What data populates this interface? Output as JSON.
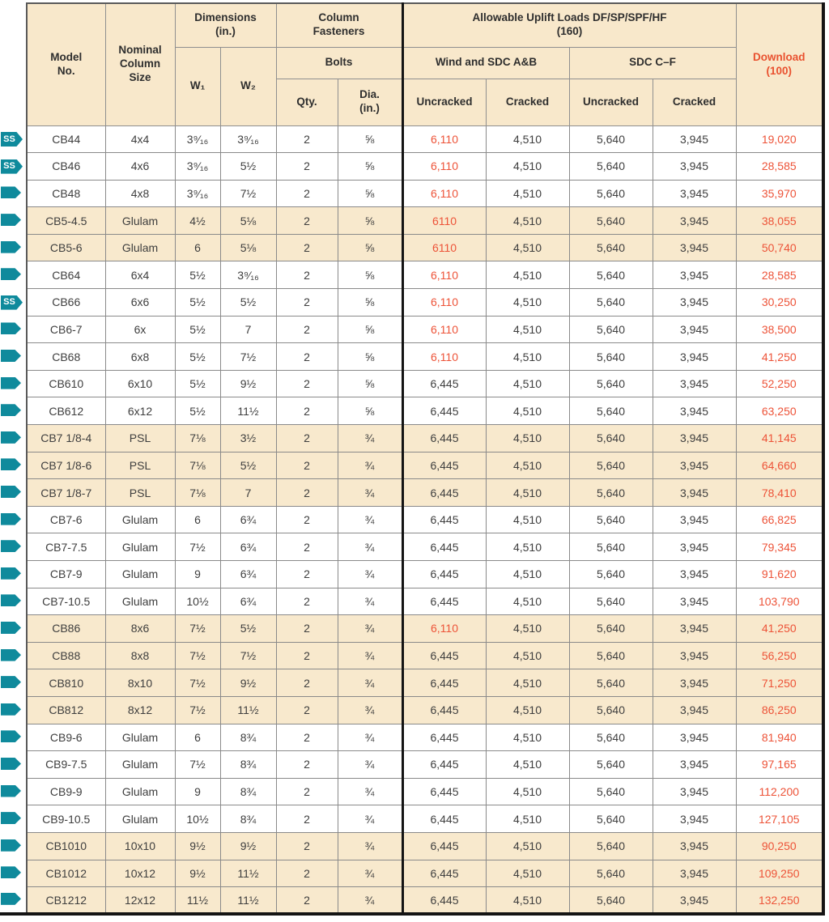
{
  "colors": {
    "accent_orange": "#ed5338",
    "badge_teal": "#0f8a9c",
    "row_tan": "#f8e9cd",
    "header_tan": "#f8e8cb"
  },
  "icons": {
    "ss_badge_label": "SS"
  },
  "table": {
    "header": {
      "model": "Model\nNo.",
      "nominal": "Nominal\nColumn\nSize",
      "dimensions": "Dimensions\n(in.)",
      "w1": "W₁",
      "w2": "W₂",
      "fasteners": "Column\nFasteners",
      "bolts": "Bolts",
      "qty": "Qty.",
      "dia": "Dia.\n(in.)",
      "uplift": "Allowable Uplift Loads DF/SP/SPF/HF\n(160)",
      "wind": "Wind and SDC A&B",
      "sdc": "SDC C–F",
      "uncracked1": "Uncracked",
      "cracked1": "Cracked",
      "uncracked2": "Uncracked",
      "cracked2": "Cracked",
      "download": "Download\n(100)"
    },
    "rows": [
      {
        "badge": "ss",
        "shaded": false,
        "model": "CB44",
        "nominal": "4x4",
        "w1": "3⁹⁄₁₆",
        "w2": "3⁹⁄₁₆",
        "qty": "2",
        "dia": "⅝",
        "wind_u": "6,110",
        "wind_u_hl": true,
        "wind_c": "4,510",
        "sdc_u": "5,640",
        "sdc_c": "3,945",
        "download": "19,020"
      },
      {
        "badge": "ss",
        "shaded": false,
        "model": "CB46",
        "nominal": "4x6",
        "w1": "3⁹⁄₁₆",
        "w2": "5½",
        "qty": "2",
        "dia": "⅝",
        "wind_u": "6,110",
        "wind_u_hl": true,
        "wind_c": "4,510",
        "sdc_u": "5,640",
        "sdc_c": "3,945",
        "download": "28,585"
      },
      {
        "badge": "arrow",
        "shaded": false,
        "model": "CB48",
        "nominal": "4x8",
        "w1": "3⁹⁄₁₆",
        "w2": "7½",
        "qty": "2",
        "dia": "⅝",
        "wind_u": "6,110",
        "wind_u_hl": true,
        "wind_c": "4,510",
        "sdc_u": "5,640",
        "sdc_c": "3,945",
        "download": "35,970"
      },
      {
        "badge": "arrow",
        "shaded": true,
        "model": "CB5-4.5",
        "nominal": "Glulam",
        "w1": "4½",
        "w2": "5⅛",
        "qty": "2",
        "dia": "⅝",
        "wind_u": "6110",
        "wind_u_hl": true,
        "wind_c": "4,510",
        "sdc_u": "5,640",
        "sdc_c": "3,945",
        "download": "38,055"
      },
      {
        "badge": "arrow",
        "shaded": true,
        "model": "CB5-6",
        "nominal": "Glulam",
        "w1": "6",
        "w2": "5⅛",
        "qty": "2",
        "dia": "⅝",
        "wind_u": "6110",
        "wind_u_hl": true,
        "wind_c": "4,510",
        "sdc_u": "5,640",
        "sdc_c": "3,945",
        "download": "50,740"
      },
      {
        "badge": "arrow",
        "shaded": false,
        "model": "CB64",
        "nominal": "6x4",
        "w1": "5½",
        "w2": "3⁹⁄₁₆",
        "qty": "2",
        "dia": "⅝",
        "wind_u": "6,110",
        "wind_u_hl": true,
        "wind_c": "4,510",
        "sdc_u": "5,640",
        "sdc_c": "3,945",
        "download": "28,585"
      },
      {
        "badge": "ss",
        "shaded": false,
        "model": "CB66",
        "nominal": "6x6",
        "w1": "5½",
        "w2": "5½",
        "qty": "2",
        "dia": "⅝",
        "wind_u": "6,110",
        "wind_u_hl": true,
        "wind_c": "4,510",
        "sdc_u": "5,640",
        "sdc_c": "3,945",
        "download": "30,250"
      },
      {
        "badge": "arrow",
        "shaded": false,
        "model": "CB6-7",
        "nominal": "6x",
        "w1": "5½",
        "w2": "7",
        "qty": "2",
        "dia": "⅝",
        "wind_u": "6,110",
        "wind_u_hl": true,
        "wind_c": "4,510",
        "sdc_u": "5,640",
        "sdc_c": "3,945",
        "download": "38,500"
      },
      {
        "badge": "arrow",
        "shaded": false,
        "model": "CB68",
        "nominal": "6x8",
        "w1": "5½",
        "w2": "7½",
        "qty": "2",
        "dia": "⅝",
        "wind_u": "6,110",
        "wind_u_hl": true,
        "wind_c": "4,510",
        "sdc_u": "5,640",
        "sdc_c": "3,945",
        "download": "41,250"
      },
      {
        "badge": "arrow",
        "shaded": false,
        "model": "CB610",
        "nominal": "6x10",
        "w1": "5½",
        "w2": "9½",
        "qty": "2",
        "dia": "⅝",
        "wind_u": "6,445",
        "wind_u_hl": false,
        "wind_c": "4,510",
        "sdc_u": "5,640",
        "sdc_c": "3,945",
        "download": "52,250"
      },
      {
        "badge": "arrow",
        "shaded": false,
        "model": "CB612",
        "nominal": "6x12",
        "w1": "5½",
        "w2": "11½",
        "qty": "2",
        "dia": "⅝",
        "wind_u": "6,445",
        "wind_u_hl": false,
        "wind_c": "4,510",
        "sdc_u": "5,640",
        "sdc_c": "3,945",
        "download": "63,250"
      },
      {
        "badge": "arrow",
        "shaded": true,
        "model": "CB7 1/8-4",
        "nominal": "PSL",
        "w1": "7⅛",
        "w2": "3½",
        "qty": "2",
        "dia": "¾",
        "wind_u": "6,445",
        "wind_u_hl": false,
        "wind_c": "4,510",
        "sdc_u": "5,640",
        "sdc_c": "3,945",
        "download": "41,145"
      },
      {
        "badge": "arrow",
        "shaded": true,
        "model": "CB7 1/8-6",
        "nominal": "PSL",
        "w1": "7⅛",
        "w2": "5½",
        "qty": "2",
        "dia": "¾",
        "wind_u": "6,445",
        "wind_u_hl": false,
        "wind_c": "4,510",
        "sdc_u": "5,640",
        "sdc_c": "3,945",
        "download": "64,660"
      },
      {
        "badge": "arrow",
        "shaded": true,
        "model": "CB7 1/8-7",
        "nominal": "PSL",
        "w1": "7⅛",
        "w2": "7",
        "qty": "2",
        "dia": "¾",
        "wind_u": "6,445",
        "wind_u_hl": false,
        "wind_c": "4,510",
        "sdc_u": "5,640",
        "sdc_c": "3,945",
        "download": "78,410"
      },
      {
        "badge": "arrow",
        "shaded": false,
        "model": "CB7-6",
        "nominal": "Glulam",
        "w1": "6",
        "w2": "6¾",
        "qty": "2",
        "dia": "¾",
        "wind_u": "6,445",
        "wind_u_hl": false,
        "wind_c": "4,510",
        "sdc_u": "5,640",
        "sdc_c": "3,945",
        "download": "66,825"
      },
      {
        "badge": "arrow",
        "shaded": false,
        "model": "CB7-7.5",
        "nominal": "Glulam",
        "w1": "7½",
        "w2": "6¾",
        "qty": "2",
        "dia": "¾",
        "wind_u": "6,445",
        "wind_u_hl": false,
        "wind_c": "4,510",
        "sdc_u": "5,640",
        "sdc_c": "3,945",
        "download": "79,345"
      },
      {
        "badge": "arrow",
        "shaded": false,
        "model": "CB7-9",
        "nominal": "Glulam",
        "w1": "9",
        "w2": "6¾",
        "qty": "2",
        "dia": "¾",
        "wind_u": "6,445",
        "wind_u_hl": false,
        "wind_c": "4,510",
        "sdc_u": "5,640",
        "sdc_c": "3,945",
        "download": "91,620"
      },
      {
        "badge": "arrow",
        "shaded": false,
        "model": "CB7-10.5",
        "nominal": "Glulam",
        "w1": "10½",
        "w2": "6¾",
        "qty": "2",
        "dia": "¾",
        "wind_u": "6,445",
        "wind_u_hl": false,
        "wind_c": "4,510",
        "sdc_u": "5,640",
        "sdc_c": "3,945",
        "download": "103,790"
      },
      {
        "badge": "arrow",
        "shaded": true,
        "model": "CB86",
        "nominal": "8x6",
        "w1": "7½",
        "w2": "5½",
        "qty": "2",
        "dia": "¾",
        "wind_u": "6,110",
        "wind_u_hl": true,
        "wind_c": "4,510",
        "sdc_u": "5,640",
        "sdc_c": "3,945",
        "download": "41,250"
      },
      {
        "badge": "arrow",
        "shaded": true,
        "model": "CB88",
        "nominal": "8x8",
        "w1": "7½",
        "w2": "7½",
        "qty": "2",
        "dia": "¾",
        "wind_u": "6,445",
        "wind_u_hl": false,
        "wind_c": "4,510",
        "sdc_u": "5,640",
        "sdc_c": "3,945",
        "download": "56,250"
      },
      {
        "badge": "arrow",
        "shaded": true,
        "model": "CB810",
        "nominal": "8x10",
        "w1": "7½",
        "w2": "9½",
        "qty": "2",
        "dia": "¾",
        "wind_u": "6,445",
        "wind_u_hl": false,
        "wind_c": "4,510",
        "sdc_u": "5,640",
        "sdc_c": "3,945",
        "download": "71,250"
      },
      {
        "badge": "arrow",
        "shaded": true,
        "model": "CB812",
        "nominal": "8x12",
        "w1": "7½",
        "w2": "11½",
        "qty": "2",
        "dia": "¾",
        "wind_u": "6,445",
        "wind_u_hl": false,
        "wind_c": "4,510",
        "sdc_u": "5,640",
        "sdc_c": "3,945",
        "download": "86,250"
      },
      {
        "badge": "arrow",
        "shaded": false,
        "model": "CB9-6",
        "nominal": "Glulam",
        "w1": "6",
        "w2": "8¾",
        "qty": "2",
        "dia": "¾",
        "wind_u": "6,445",
        "wind_u_hl": false,
        "wind_c": "4,510",
        "sdc_u": "5,640",
        "sdc_c": "3,945",
        "download": "81,940"
      },
      {
        "badge": "arrow",
        "shaded": false,
        "model": "CB9-7.5",
        "nominal": "Glulam",
        "w1": "7½",
        "w2": "8¾",
        "qty": "2",
        "dia": "¾",
        "wind_u": "6,445",
        "wind_u_hl": false,
        "wind_c": "4,510",
        "sdc_u": "5,640",
        "sdc_c": "3,945",
        "download": "97,165"
      },
      {
        "badge": "arrow",
        "shaded": false,
        "model": "CB9-9",
        "nominal": "Glulam",
        "w1": "9",
        "w2": "8¾",
        "qty": "2",
        "dia": "¾",
        "wind_u": "6,445",
        "wind_u_hl": false,
        "wind_c": "4,510",
        "sdc_u": "5,640",
        "sdc_c": "3,945",
        "download": "112,200"
      },
      {
        "badge": "arrow",
        "shaded": false,
        "model": "CB9-10.5",
        "nominal": "Glulam",
        "w1": "10½",
        "w2": "8¾",
        "qty": "2",
        "dia": "¾",
        "wind_u": "6,445",
        "wind_u_hl": false,
        "wind_c": "4,510",
        "sdc_u": "5,640",
        "sdc_c": "3,945",
        "download": "127,105"
      },
      {
        "badge": "arrow",
        "shaded": true,
        "model": "CB1010",
        "nominal": "10x10",
        "w1": "9½",
        "w2": "9½",
        "qty": "2",
        "dia": "¾",
        "wind_u": "6,445",
        "wind_u_hl": false,
        "wind_c": "4,510",
        "sdc_u": "5,640",
        "sdc_c": "3,945",
        "download": "90,250"
      },
      {
        "badge": "arrow",
        "shaded": true,
        "model": "CB1012",
        "nominal": "10x12",
        "w1": "9½",
        "w2": "11½",
        "qty": "2",
        "dia": "¾",
        "wind_u": "6,445",
        "wind_u_hl": false,
        "wind_c": "4,510",
        "sdc_u": "5,640",
        "sdc_c": "3,945",
        "download": "109,250"
      },
      {
        "badge": "arrow",
        "shaded": true,
        "model": "CB1212",
        "nominal": "12x12",
        "w1": "11½",
        "w2": "11½",
        "qty": "2",
        "dia": "¾",
        "wind_u": "6,445",
        "wind_u_hl": false,
        "wind_c": "4,510",
        "sdc_u": "5,640",
        "sdc_c": "3,945",
        "download": "132,250"
      }
    ]
  }
}
